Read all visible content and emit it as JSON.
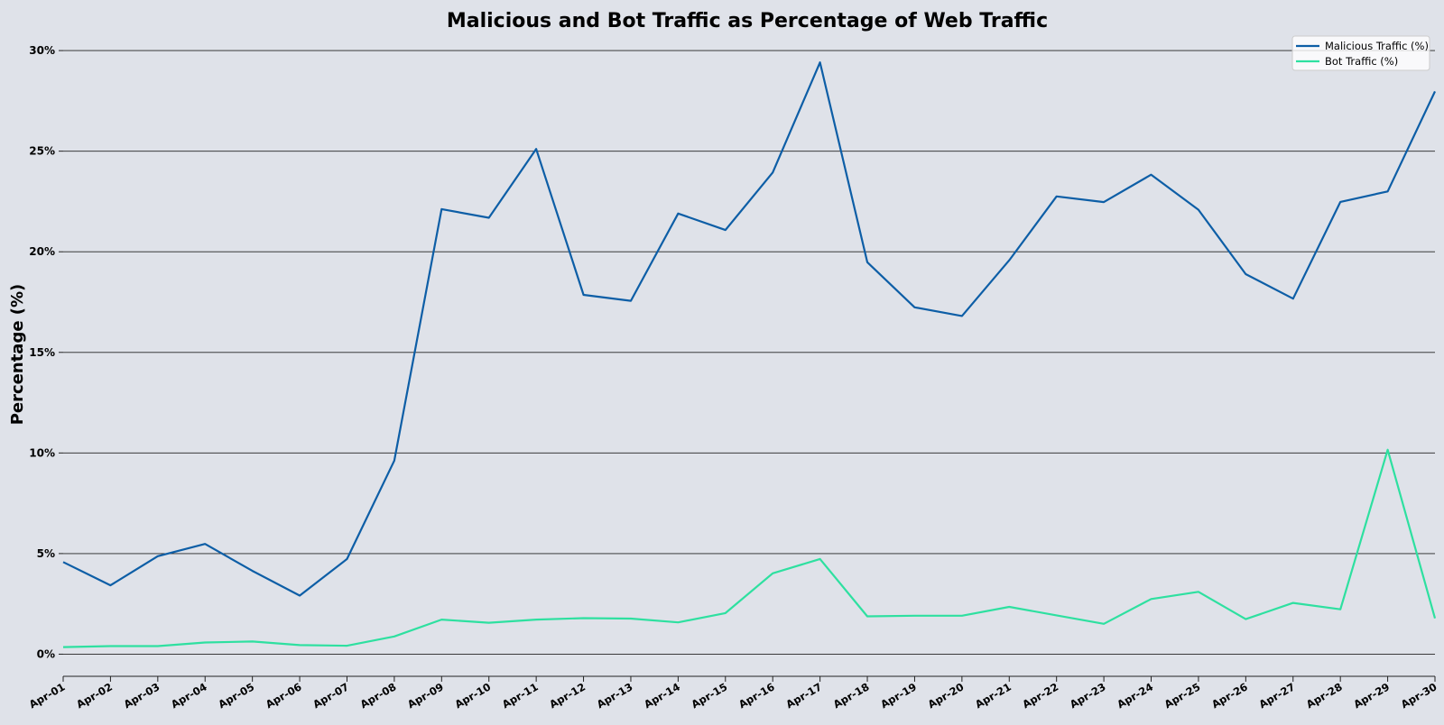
{
  "chart_data": {
    "type": "line",
    "title": "Malicious and Bot Traffic as Percentage of Web Traffic",
    "xlabel": "",
    "ylabel": "Percentage (%)",
    "ylim": [
      -1.1,
      30.9
    ],
    "yticks": [
      0,
      5,
      10,
      15,
      20,
      25,
      30
    ],
    "ytick_labels": [
      "0%",
      "5%",
      "10%",
      "15%",
      "20%",
      "25%",
      "30%"
    ],
    "grid": "horizontal",
    "legend_position": "top-right",
    "categories": [
      "Apr-01",
      "Apr-02",
      "Apr-03",
      "Apr-04",
      "Apr-05",
      "Apr-06",
      "Apr-07",
      "Apr-08",
      "Apr-09",
      "Apr-10",
      "Apr-11",
      "Apr-12",
      "Apr-13",
      "Apr-14",
      "Apr-15",
      "Apr-16",
      "Apr-17",
      "Apr-18",
      "Apr-19",
      "Apr-20",
      "Apr-21",
      "Apr-22",
      "Apr-23",
      "Apr-24",
      "Apr-25",
      "Apr-26",
      "Apr-27",
      "Apr-28",
      "Apr-29",
      "Apr-30"
    ],
    "series": [
      {
        "name": "Malicious Traffic (%)",
        "color": "#0d5ea6",
        "values": [
          4.58,
          3.42,
          4.87,
          5.48,
          4.14,
          2.91,
          4.73,
          9.62,
          22.12,
          21.69,
          25.11,
          17.86,
          17.56,
          21.9,
          21.08,
          23.94,
          29.41,
          19.48,
          17.24,
          16.81,
          19.58,
          22.75,
          22.47,
          23.83,
          22.09,
          18.89,
          17.67,
          22.48,
          23.0,
          27.97
        ]
      },
      {
        "name": "Bot Traffic (%)",
        "color": "#2ee0a0",
        "values": [
          0.35,
          0.4,
          0.4,
          0.58,
          0.63,
          0.45,
          0.42,
          0.88,
          1.72,
          1.56,
          1.72,
          1.79,
          1.77,
          1.58,
          2.04,
          4.02,
          4.73,
          1.88,
          1.91,
          1.91,
          2.35,
          1.93,
          1.51,
          2.74,
          3.1,
          1.74,
          2.55,
          2.23,
          10.16,
          1.78
        ]
      }
    ]
  }
}
